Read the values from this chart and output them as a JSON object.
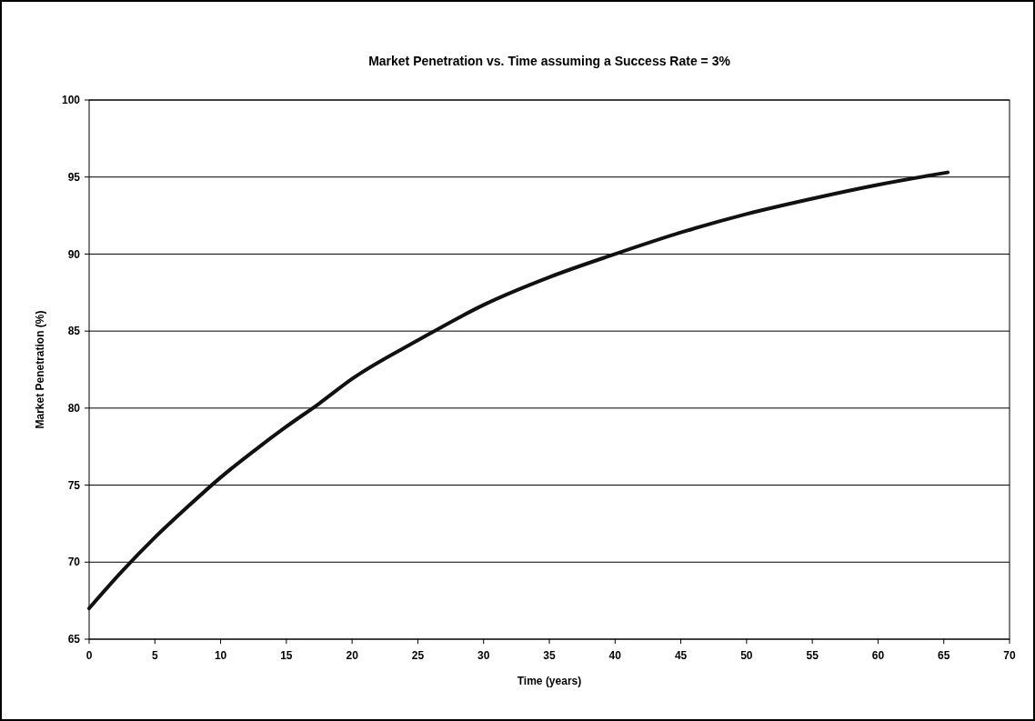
{
  "chart_data": {
    "type": "line",
    "title": "Market Penetration vs. Time assuming a Success Rate = 3%",
    "xlabel": "Time (years)",
    "ylabel": "Market Penetration (%)",
    "x": [
      0,
      2.5,
      5,
      7.5,
      10,
      12.5,
      15,
      17.5,
      20,
      25,
      30,
      35,
      40,
      45,
      50,
      55,
      60,
      65.3
    ],
    "series": [
      {
        "color": "#111111",
        "values": [
          67,
          69.4,
          71.6,
          73.6,
          75.5,
          77.2,
          78.8,
          80.3,
          81.9,
          84.4,
          86.7,
          88.5,
          90,
          91.4,
          92.6,
          93.6,
          94.5,
          95.3
        ]
      }
    ],
    "xlim": [
      0,
      70
    ],
    "xticks": [
      0,
      5,
      10,
      15,
      20,
      25,
      30,
      35,
      40,
      45,
      50,
      55,
      60,
      65,
      70
    ],
    "ylim": [
      65,
      100
    ],
    "yticks": [
      65,
      70,
      75,
      80,
      85,
      90,
      95,
      100
    ],
    "grid": "y",
    "marker": "none",
    "line_style": "solid"
  }
}
